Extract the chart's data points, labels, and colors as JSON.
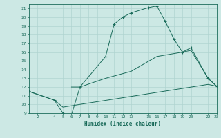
{
  "xlabel": "Humidex (Indice chaleur)",
  "bg_color": "#cce8e4",
  "grid_color": "#b0d4d0",
  "line_color": "#1a6b5a",
  "xlim": [
    1,
    23
  ],
  "ylim": [
    9,
    21.5
  ],
  "xticks": [
    2,
    4,
    5,
    6,
    7,
    8,
    9,
    10,
    11,
    12,
    13,
    15,
    16,
    17,
    18,
    19,
    20,
    22,
    23
  ],
  "yticks": [
    9,
    10,
    11,
    12,
    13,
    14,
    15,
    16,
    17,
    18,
    19,
    20,
    21
  ],
  "curve_main_x": [
    1,
    4,
    5,
    6,
    7,
    10,
    11,
    12,
    13,
    15,
    16,
    17,
    18,
    19,
    20,
    22,
    23
  ],
  "curve_main_y": [
    11.5,
    10.5,
    9.0,
    8.8,
    12.0,
    15.5,
    19.2,
    20.0,
    20.5,
    21.1,
    21.3,
    19.5,
    17.5,
    16.0,
    16.5,
    13.0,
    12.1
  ],
  "line_lower_x": [
    1,
    4,
    5,
    22,
    23
  ],
  "line_lower_y": [
    11.5,
    10.5,
    9.7,
    12.3,
    12.1
  ],
  "line_mid_x": [
    6,
    7,
    10,
    13,
    16,
    19,
    20,
    22,
    23
  ],
  "line_mid_y": [
    12.0,
    12.0,
    13.0,
    13.8,
    15.5,
    16.0,
    16.2,
    13.0,
    12.1
  ]
}
